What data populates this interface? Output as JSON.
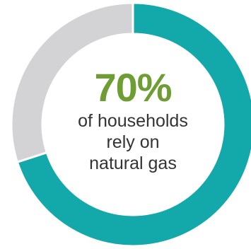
{
  "chart_data": {
    "type": "pie",
    "style": "donut",
    "slices": [
      {
        "value": 70,
        "color": "#13a9aa"
      },
      {
        "value": 30,
        "color": "#d3d3d5"
      }
    ],
    "center_value": "70%",
    "center_value_color": "#6e9d33",
    "center_label_lines": [
      "of households",
      "rely on",
      "natural gas"
    ]
  }
}
